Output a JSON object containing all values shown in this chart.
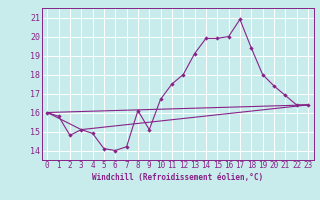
{
  "xlabel": "Windchill (Refroidissement éolien,°C)",
  "bg_color": "#c8ecec",
  "line_color": "#882288",
  "grid_color": "#ffffff",
  "xlim": [
    -0.5,
    23.5
  ],
  "ylim": [
    13.5,
    21.5
  ],
  "yticks": [
    14,
    15,
    16,
    17,
    18,
    19,
    20,
    21
  ],
  "xticks": [
    0,
    1,
    2,
    3,
    4,
    5,
    6,
    7,
    8,
    9,
    10,
    11,
    12,
    13,
    14,
    15,
    16,
    17,
    18,
    19,
    20,
    21,
    22,
    23
  ],
  "line1_x": [
    0,
    1,
    2,
    3,
    4,
    5,
    6,
    7,
    8,
    9,
    10,
    11,
    12,
    13,
    14,
    15,
    16,
    17,
    18,
    19,
    20,
    21,
    22,
    23
  ],
  "line1_y": [
    16.0,
    15.8,
    14.8,
    15.1,
    14.9,
    14.1,
    14.0,
    14.2,
    16.1,
    15.1,
    16.7,
    17.5,
    18.0,
    19.1,
    19.9,
    19.9,
    20.0,
    20.9,
    19.4,
    18.0,
    17.4,
    16.9,
    16.4,
    16.4
  ],
  "line2_x": [
    0,
    23
  ],
  "line2_y": [
    16.0,
    16.4
  ],
  "line3_x": [
    0,
    3,
    23
  ],
  "line3_y": [
    16.0,
    15.1,
    16.4
  ],
  "xlabel_fontsize": 5.5,
  "tick_fontsize": 5.5
}
